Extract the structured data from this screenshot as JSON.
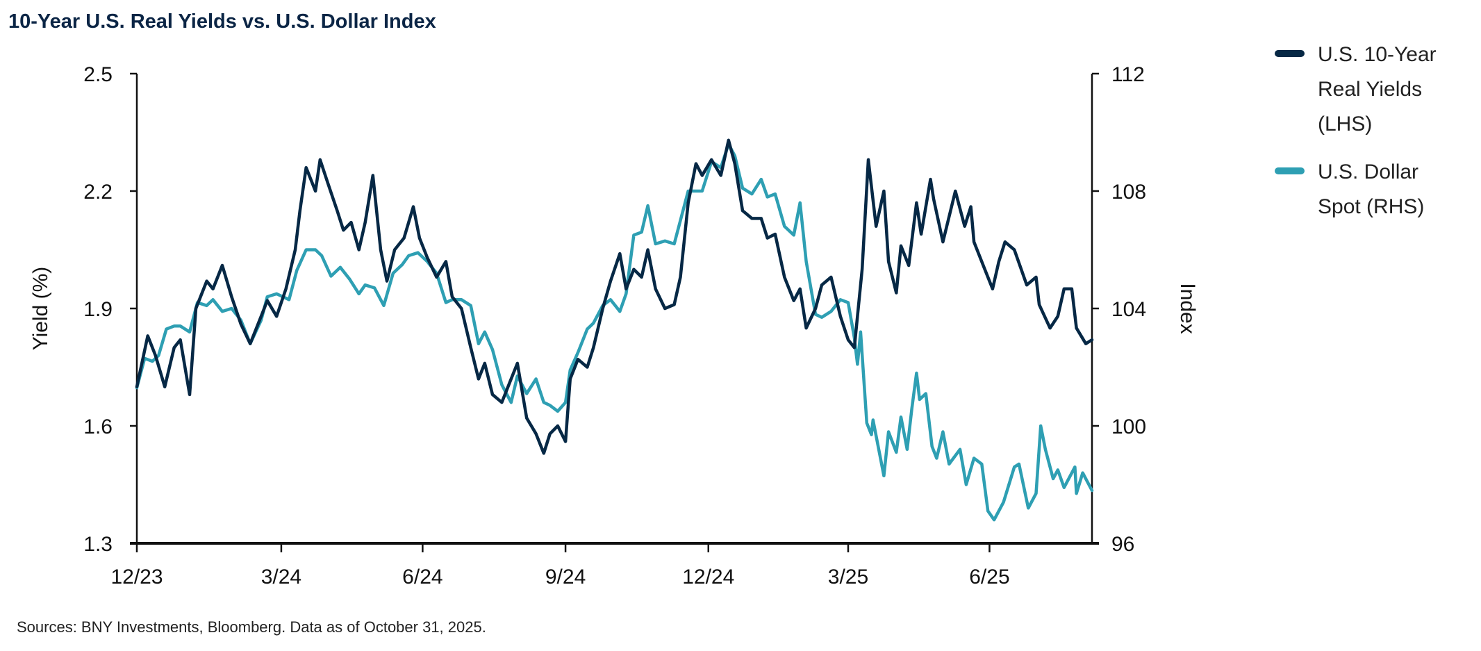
{
  "chart_data": {
    "type": "line",
    "title": "10-Year U.S. Real Yields vs. U.S. Dollar Index",
    "ylabel": "Yield (%)",
    "y2label": "Index",
    "ylim": [
      1.3,
      2.5
    ],
    "y2lim": [
      96,
      112
    ],
    "yticks": [
      "2.5",
      "2.2",
      "1.9",
      "1.6",
      "1.3"
    ],
    "y2ticks": [
      "112",
      "108",
      "104",
      "100",
      "96"
    ],
    "xticks": [
      {
        "label": "12/23",
        "date": "2023-12-31"
      },
      {
        "label": "3/24",
        "date": "2024-03-31"
      },
      {
        "label": "6/24",
        "date": "2024-06-30"
      },
      {
        "label": "9/24",
        "date": "2024-09-30"
      },
      {
        "label": "12/24",
        "date": "2024-12-31"
      },
      {
        "label": "3/25",
        "date": "2025-03-31"
      },
      {
        "label": "6/25",
        "date": "2025-06-30"
      }
    ],
    "xlim": [
      "2023-12-29",
      "2025-09-04"
    ],
    "grid": false,
    "legend_position": "right",
    "series": [
      {
        "name_lines": [
          "U.S. 10-Year",
          "Real Yields",
          "(LHS)"
        ],
        "axis": "left",
        "color": "#062845",
        "points": [
          [
            "2023-12-29",
            1.7
          ],
          [
            "2024-01-05",
            1.83
          ],
          [
            "2024-01-10",
            1.78
          ],
          [
            "2024-01-16",
            1.7
          ],
          [
            "2024-01-22",
            1.8
          ],
          [
            "2024-01-26",
            1.82
          ],
          [
            "2024-02-01",
            1.68
          ],
          [
            "2024-02-05",
            1.9
          ],
          [
            "2024-02-12",
            1.97
          ],
          [
            "2024-02-16",
            1.95
          ],
          [
            "2024-02-22",
            2.01
          ],
          [
            "2024-02-28",
            1.93
          ],
          [
            "2024-03-05",
            1.86
          ],
          [
            "2024-03-11",
            1.81
          ],
          [
            "2024-03-18",
            1.88
          ],
          [
            "2024-03-22",
            1.92
          ],
          [
            "2024-03-28",
            1.88
          ],
          [
            "2024-04-03",
            1.95
          ],
          [
            "2024-04-09",
            2.05
          ],
          [
            "2024-04-12",
            2.15
          ],
          [
            "2024-04-16",
            2.26
          ],
          [
            "2024-04-22",
            2.2
          ],
          [
            "2024-04-25",
            2.28
          ],
          [
            "2024-04-30",
            2.22
          ],
          [
            "2024-05-06",
            2.15
          ],
          [
            "2024-05-10",
            2.1
          ],
          [
            "2024-05-15",
            2.12
          ],
          [
            "2024-05-20",
            2.05
          ],
          [
            "2024-05-24",
            2.12
          ],
          [
            "2024-05-29",
            2.24
          ],
          [
            "2024-06-03",
            2.05
          ],
          [
            "2024-06-07",
            1.97
          ],
          [
            "2024-06-12",
            2.05
          ],
          [
            "2024-06-18",
            2.08
          ],
          [
            "2024-06-24",
            2.16
          ],
          [
            "2024-06-28",
            2.08
          ],
          [
            "2024-07-03",
            2.03
          ],
          [
            "2024-07-09",
            1.98
          ],
          [
            "2024-07-15",
            2.02
          ],
          [
            "2024-07-19",
            1.93
          ],
          [
            "2024-07-25",
            1.9
          ],
          [
            "2024-07-31",
            1.8
          ],
          [
            "2024-08-05",
            1.72
          ],
          [
            "2024-08-09",
            1.76
          ],
          [
            "2024-08-14",
            1.68
          ],
          [
            "2024-08-20",
            1.66
          ],
          [
            "2024-08-26",
            1.72
          ],
          [
            "2024-08-30",
            1.76
          ],
          [
            "2024-09-05",
            1.62
          ],
          [
            "2024-09-11",
            1.58
          ],
          [
            "2024-09-16",
            1.53
          ],
          [
            "2024-09-20",
            1.58
          ],
          [
            "2024-09-25",
            1.6
          ],
          [
            "2024-09-30",
            1.56
          ],
          [
            "2024-10-03",
            1.72
          ],
          [
            "2024-10-08",
            1.77
          ],
          [
            "2024-10-14",
            1.75
          ],
          [
            "2024-10-18",
            1.8
          ],
          [
            "2024-10-24",
            1.9
          ],
          [
            "2024-10-29",
            1.97
          ],
          [
            "2024-11-04",
            2.04
          ],
          [
            "2024-11-08",
            1.95
          ],
          [
            "2024-11-13",
            2.0
          ],
          [
            "2024-11-18",
            1.98
          ],
          [
            "2024-11-22",
            2.05
          ],
          [
            "2024-11-27",
            1.95
          ],
          [
            "2024-12-03",
            1.9
          ],
          [
            "2024-12-09",
            1.91
          ],
          [
            "2024-12-13",
            1.98
          ],
          [
            "2024-12-18",
            2.17
          ],
          [
            "2024-12-23",
            2.27
          ],
          [
            "2024-12-27",
            2.24
          ],
          [
            "2025-01-02",
            2.28
          ],
          [
            "2025-01-08",
            2.24
          ],
          [
            "2025-01-13",
            2.33
          ],
          [
            "2025-01-17",
            2.27
          ],
          [
            "2025-01-22",
            2.15
          ],
          [
            "2025-01-28",
            2.13
          ],
          [
            "2025-02-03",
            2.13
          ],
          [
            "2025-02-07",
            2.08
          ],
          [
            "2025-02-12",
            2.09
          ],
          [
            "2025-02-18",
            1.98
          ],
          [
            "2025-02-24",
            1.92
          ],
          [
            "2025-02-28",
            1.95
          ],
          [
            "2025-03-04",
            1.85
          ],
          [
            "2025-03-10",
            1.9
          ],
          [
            "2025-03-14",
            1.96
          ],
          [
            "2025-03-20",
            1.98
          ],
          [
            "2025-03-26",
            1.88
          ],
          [
            "2025-03-31",
            1.82
          ],
          [
            "2025-04-04",
            1.8
          ],
          [
            "2025-04-09",
            2.0
          ],
          [
            "2025-04-13",
            2.28
          ],
          [
            "2025-04-18",
            2.11
          ],
          [
            "2025-04-23",
            2.2
          ],
          [
            "2025-04-26",
            2.02
          ],
          [
            "2025-05-01",
            1.94
          ],
          [
            "2025-05-04",
            2.06
          ],
          [
            "2025-05-09",
            2.01
          ],
          [
            "2025-05-14",
            2.17
          ],
          [
            "2025-05-17",
            2.09
          ],
          [
            "2025-05-23",
            2.23
          ],
          [
            "2025-05-25",
            2.18
          ],
          [
            "2025-05-31",
            2.07
          ],
          [
            "2025-06-08",
            2.2
          ],
          [
            "2025-06-14",
            2.11
          ],
          [
            "2025-06-18",
            2.16
          ],
          [
            "2025-06-20",
            2.07
          ],
          [
            "2025-06-27",
            2.0
          ],
          [
            "2025-07-02",
            1.95
          ],
          [
            "2025-07-06",
            2.02
          ],
          [
            "2025-07-10",
            2.07
          ],
          [
            "2025-07-16",
            2.05
          ],
          [
            "2025-07-24",
            1.96
          ],
          [
            "2025-07-30",
            1.98
          ],
          [
            "2025-08-01",
            1.91
          ],
          [
            "2025-08-08",
            1.85
          ],
          [
            "2025-08-13",
            1.88
          ],
          [
            "2025-08-17",
            1.95
          ],
          [
            "2025-08-22",
            1.95
          ],
          [
            "2025-08-25",
            1.85
          ],
          [
            "2025-08-31",
            1.81
          ],
          [
            "2025-09-04",
            1.82
          ]
        ]
      },
      {
        "name_lines": [
          "U.S. Dollar",
          "Spot (RHS)"
        ],
        "axis": "right",
        "color": "#2e9fb3",
        "points": [
          [
            "2023-12-29",
            101.3
          ],
          [
            "2024-01-03",
            102.3
          ],
          [
            "2024-01-08",
            102.2
          ],
          [
            "2024-01-12",
            102.4
          ],
          [
            "2024-01-17",
            103.3
          ],
          [
            "2024-01-22",
            103.4
          ],
          [
            "2024-01-26",
            103.4
          ],
          [
            "2024-02-01",
            103.2
          ],
          [
            "2024-02-06",
            104.2
          ],
          [
            "2024-02-12",
            104.1
          ],
          [
            "2024-02-16",
            104.3
          ],
          [
            "2024-02-22",
            103.9
          ],
          [
            "2024-02-28",
            104.0
          ],
          [
            "2024-03-05",
            103.6
          ],
          [
            "2024-03-11",
            102.8
          ],
          [
            "2024-03-18",
            103.6
          ],
          [
            "2024-03-22",
            104.4
          ],
          [
            "2024-03-28",
            104.5
          ],
          [
            "2024-04-05",
            104.3
          ],
          [
            "2024-04-10",
            105.3
          ],
          [
            "2024-04-16",
            106.0
          ],
          [
            "2024-04-22",
            106.0
          ],
          [
            "2024-04-26",
            105.8
          ],
          [
            "2024-05-02",
            105.1
          ],
          [
            "2024-05-08",
            105.4
          ],
          [
            "2024-05-14",
            105.0
          ],
          [
            "2024-05-20",
            104.5
          ],
          [
            "2024-05-24",
            104.8
          ],
          [
            "2024-05-30",
            104.7
          ],
          [
            "2024-06-05",
            104.1
          ],
          [
            "2024-06-11",
            105.2
          ],
          [
            "2024-06-17",
            105.5
          ],
          [
            "2024-06-21",
            105.8
          ],
          [
            "2024-06-27",
            105.9
          ],
          [
            "2024-07-03",
            105.6
          ],
          [
            "2024-07-09",
            105.2
          ],
          [
            "2024-07-15",
            104.2
          ],
          [
            "2024-07-19",
            104.3
          ],
          [
            "2024-07-25",
            104.3
          ],
          [
            "2024-07-31",
            104.1
          ],
          [
            "2024-08-05",
            102.8
          ],
          [
            "2024-08-09",
            103.2
          ],
          [
            "2024-08-14",
            102.6
          ],
          [
            "2024-08-20",
            101.4
          ],
          [
            "2024-08-26",
            100.8
          ],
          [
            "2024-08-30",
            101.7
          ],
          [
            "2024-09-05",
            101.1
          ],
          [
            "2024-09-11",
            101.6
          ],
          [
            "2024-09-16",
            100.8
          ],
          [
            "2024-09-20",
            100.7
          ],
          [
            "2024-09-25",
            100.5
          ],
          [
            "2024-09-30",
            100.8
          ],
          [
            "2024-10-03",
            101.9
          ],
          [
            "2024-10-08",
            102.5
          ],
          [
            "2024-10-14",
            103.3
          ],
          [
            "2024-10-18",
            103.5
          ],
          [
            "2024-10-24",
            104.1
          ],
          [
            "2024-10-29",
            104.3
          ],
          [
            "2024-11-04",
            103.9
          ],
          [
            "2024-11-08",
            104.5
          ],
          [
            "2024-11-13",
            106.5
          ],
          [
            "2024-11-18",
            106.6
          ],
          [
            "2024-11-22",
            107.5
          ],
          [
            "2024-11-27",
            106.2
          ],
          [
            "2024-12-03",
            106.3
          ],
          [
            "2024-12-09",
            106.2
          ],
          [
            "2024-12-13",
            107.0
          ],
          [
            "2024-12-18",
            108.0
          ],
          [
            "2024-12-23",
            108.0
          ],
          [
            "2024-12-27",
            108.0
          ],
          [
            "2025-01-02",
            109.0
          ],
          [
            "2025-01-08",
            108.8
          ],
          [
            "2025-01-13",
            109.6
          ],
          [
            "2025-01-17",
            109.2
          ],
          [
            "2025-01-22",
            108.1
          ],
          [
            "2025-01-28",
            107.9
          ],
          [
            "2025-02-03",
            108.4
          ],
          [
            "2025-02-07",
            107.8
          ],
          [
            "2025-02-12",
            107.9
          ],
          [
            "2025-02-18",
            106.8
          ],
          [
            "2025-02-24",
            106.5
          ],
          [
            "2025-02-28",
            107.6
          ],
          [
            "2025-03-04",
            105.6
          ],
          [
            "2025-03-10",
            103.8
          ],
          [
            "2025-03-14",
            103.7
          ],
          [
            "2025-03-20",
            103.9
          ],
          [
            "2025-03-26",
            104.3
          ],
          [
            "2025-03-31",
            104.2
          ],
          [
            "2025-04-04",
            103.0
          ],
          [
            "2025-04-06",
            102.1
          ],
          [
            "2025-04-08",
            103.2
          ],
          [
            "2025-04-12",
            100.1
          ],
          [
            "2025-04-15",
            99.7
          ],
          [
            "2025-04-16",
            100.2
          ],
          [
            "2025-04-23",
            98.3
          ],
          [
            "2025-04-26",
            99.8
          ],
          [
            "2025-05-01",
            99.1
          ],
          [
            "2025-05-04",
            100.3
          ],
          [
            "2025-05-08",
            99.2
          ],
          [
            "2025-05-11",
            100.6
          ],
          [
            "2025-05-14",
            101.8
          ],
          [
            "2025-05-16",
            100.9
          ],
          [
            "2025-05-20",
            101.1
          ],
          [
            "2025-05-24",
            99.3
          ],
          [
            "2025-05-27",
            98.9
          ],
          [
            "2025-05-31",
            99.8
          ],
          [
            "2025-06-04",
            98.7
          ],
          [
            "2025-06-11",
            99.2
          ],
          [
            "2025-06-15",
            98.0
          ],
          [
            "2025-06-20",
            98.9
          ],
          [
            "2025-06-25",
            98.7
          ],
          [
            "2025-06-29",
            97.1
          ],
          [
            "2025-07-03",
            96.8
          ],
          [
            "2025-07-09",
            97.4
          ],
          [
            "2025-07-16",
            98.6
          ],
          [
            "2025-07-19",
            98.7
          ],
          [
            "2025-07-25",
            97.2
          ],
          [
            "2025-07-30",
            97.7
          ],
          [
            "2025-08-02",
            100.0
          ],
          [
            "2025-08-05",
            99.2
          ],
          [
            "2025-08-10",
            98.2
          ],
          [
            "2025-08-13",
            98.5
          ],
          [
            "2025-08-17",
            97.9
          ],
          [
            "2025-08-24",
            98.6
          ],
          [
            "2025-08-25",
            97.7
          ],
          [
            "2025-08-29",
            98.4
          ],
          [
            "2025-09-04",
            97.8
          ]
        ]
      }
    ],
    "source": "Sources: BNY Investments, Bloomberg. Data as of October 31, 2025."
  }
}
